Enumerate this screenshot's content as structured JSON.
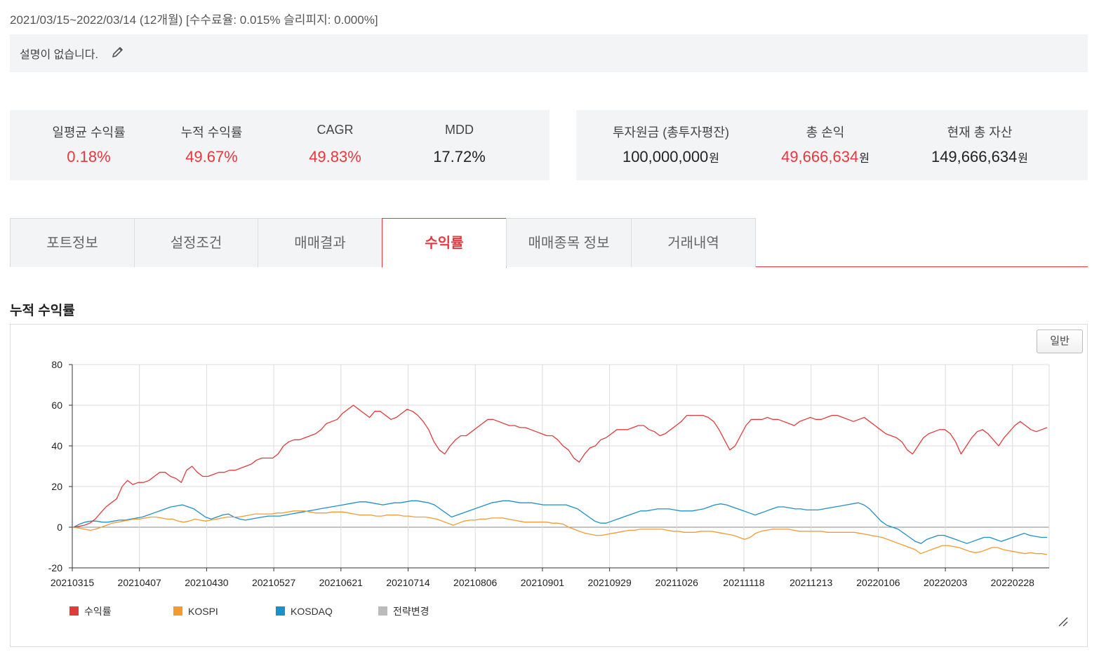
{
  "header": {
    "period": "2021/03/15~2022/03/14 (12개월) [수수료율: 0.015% 슬리피지: 0.000%]",
    "description": "설명이 없습니다."
  },
  "stats_left": [
    {
      "label": "일평균 수익률",
      "value": "0.18%",
      "color": "#e8383d"
    },
    {
      "label": "누적 수익률",
      "value": "49.67%",
      "color": "#e8383d"
    },
    {
      "label": "CAGR",
      "value": "49.83%",
      "color": "#e8383d"
    },
    {
      "label": "MDD",
      "value": "17.72%",
      "color": "#222222"
    }
  ],
  "stats_right": [
    {
      "label": "투자원금 (총투자평잔)",
      "value": "100,000,000",
      "unit": "원",
      "color": "#222222"
    },
    {
      "label": "총 손익",
      "value": "49,666,634",
      "unit": "원",
      "color": "#e8383d"
    },
    {
      "label": "현재 총 자산",
      "value": "149,666,634",
      "unit": "원",
      "color": "#222222"
    }
  ],
  "tabs": [
    {
      "label": "포트정보",
      "active": false
    },
    {
      "label": "설정조건",
      "active": false
    },
    {
      "label": "매매결과",
      "active": false
    },
    {
      "label": "수익률",
      "active": true
    },
    {
      "label": "매매종목 정보",
      "active": false
    },
    {
      "label": "거래내역",
      "active": false
    }
  ],
  "section_title": "누적 수익률",
  "chart_mode_button": "일반",
  "chart_data": {
    "type": "line",
    "title": "",
    "xlabel": "",
    "ylabel": "",
    "ylim": [
      -20,
      80
    ],
    "yticks": [
      "80",
      "60",
      "40",
      "20",
      "0",
      "-20"
    ],
    "xticks": [
      "20210315",
      "20210407",
      "20210430",
      "20210527",
      "20210621",
      "20210714",
      "20210806",
      "20210901",
      "20210929",
      "20211026",
      "20211118",
      "20211213",
      "20220106",
      "20220203",
      "20220228"
    ],
    "grid": true,
    "legend_position": "bottom-left",
    "series": [
      {
        "name": "수익률",
        "color": "#e03c3c",
        "values": [
          0,
          0.5,
          1,
          2,
          4,
          7,
          10,
          12,
          14,
          20,
          23,
          21,
          22,
          22,
          23,
          25,
          27,
          27,
          25,
          24,
          22,
          28,
          30,
          27,
          25,
          25,
          26,
          27,
          27,
          28,
          28,
          29,
          30,
          31,
          33,
          34,
          34,
          34,
          36,
          40,
          42,
          43,
          43,
          44,
          45,
          46,
          48,
          51,
          52,
          53,
          56,
          58,
          60,
          58,
          56,
          54,
          57,
          57,
          55,
          53,
          54,
          56,
          58,
          57,
          55,
          52,
          48,
          42,
          38,
          36,
          40,
          43,
          45,
          45,
          47,
          49,
          51,
          53,
          53,
          52,
          51,
          50,
          50,
          49,
          49,
          48,
          47,
          46,
          45,
          45,
          43,
          40,
          38,
          34,
          32,
          36,
          39,
          40,
          43,
          44,
          46,
          48,
          48,
          48,
          49,
          50,
          50,
          48,
          47,
          45,
          46,
          48,
          50,
          52,
          55,
          55,
          55,
          55,
          54,
          52,
          48,
          43,
          38,
          40,
          45,
          50,
          53,
          53,
          53,
          54,
          53,
          53,
          52,
          51,
          50,
          52,
          53,
          54,
          53,
          53,
          54,
          55,
          55,
          54,
          53,
          52,
          53,
          54,
          52,
          50,
          48,
          46,
          45,
          44,
          42,
          38,
          36,
          40,
          44,
          46,
          47,
          48,
          48,
          46,
          42,
          36,
          40,
          44,
          47,
          48,
          46,
          43,
          40,
          44,
          47,
          50,
          52,
          50,
          48,
          47,
          48,
          49
        ]
      },
      {
        "name": "KOSPI",
        "color": "#f29b30",
        "values": [
          0,
          -0.5,
          -1,
          -1.5,
          -1,
          0,
          1,
          2,
          2.5,
          3,
          3.5,
          4,
          4,
          4.5,
          5,
          5,
          4.5,
          4,
          4,
          3,
          2.5,
          3,
          4,
          3.5,
          3,
          3.5,
          4,
          4.5,
          5,
          5,
          5,
          5.5,
          6,
          6.5,
          6.5,
          6.5,
          6.5,
          7,
          7,
          7.5,
          8,
          8,
          8,
          7.5,
          7,
          7,
          7,
          7.5,
          7.5,
          7.5,
          7,
          6.5,
          6,
          6,
          6,
          5.5,
          5.5,
          6,
          6,
          6,
          5.5,
          5.5,
          5,
          5,
          5,
          4.5,
          4,
          3,
          2,
          1,
          2,
          3,
          3.5,
          3.5,
          4,
          4,
          4.5,
          4.5,
          4.5,
          4,
          3.5,
          3,
          2.5,
          2.5,
          2.5,
          2.5,
          2.5,
          2,
          2,
          1.5,
          0,
          -1,
          -2,
          -3,
          -3.5,
          -4,
          -4,
          -3.5,
          -3,
          -2.5,
          -2,
          -1.5,
          -1.5,
          -1,
          -1,
          -1,
          -1,
          -1,
          -1.5,
          -2,
          -2,
          -2.5,
          -2.5,
          -2.5,
          -2,
          -2,
          -2,
          -2.5,
          -3,
          -3.5,
          -4,
          -5,
          -6,
          -5,
          -3,
          -2,
          -1.5,
          -1,
          -1,
          -1,
          -1,
          -1.5,
          -2,
          -2,
          -2,
          -2,
          -2,
          -2.5,
          -2.5,
          -2.5,
          -2.5,
          -2.5,
          -2.5,
          -3,
          -3.5,
          -4,
          -4.5,
          -5,
          -6,
          -7,
          -8,
          -9,
          -10,
          -11,
          -13,
          -12,
          -11,
          -10,
          -9,
          -9,
          -9.5,
          -10,
          -11,
          -12,
          -12.5,
          -12,
          -11,
          -10,
          -10,
          -11,
          -11.5,
          -12,
          -12.5,
          -13,
          -12.5,
          -13,
          -13,
          -13.5
        ]
      },
      {
        "name": "KOSDAQ",
        "color": "#1e90c8",
        "values": [
          0,
          1.5,
          2.5,
          3,
          3,
          2.5,
          2.5,
          3,
          3.5,
          3.5,
          4,
          4.5,
          5,
          6,
          7,
          8,
          9,
          10,
          10.5,
          11,
          10,
          9,
          7,
          5,
          4,
          5,
          6,
          6.5,
          5,
          4,
          3.5,
          4,
          4.5,
          5,
          5.5,
          5.5,
          5.5,
          6,
          6.5,
          7,
          7.5,
          8,
          8.5,
          9,
          9.5,
          10,
          10.5,
          11,
          11.5,
          12,
          12.5,
          12.5,
          12,
          11.5,
          11,
          11.5,
          12,
          12,
          12.5,
          13,
          13,
          12.5,
          12,
          11,
          9,
          7,
          5,
          6,
          7,
          8,
          9,
          10,
          11,
          12,
          12.5,
          13,
          13,
          12.5,
          12,
          12,
          12,
          11.5,
          11,
          11,
          11,
          11,
          11,
          10,
          9,
          7,
          5,
          3,
          2,
          2,
          3,
          4,
          5,
          6,
          7,
          8,
          8,
          8.5,
          9,
          9,
          9,
          8.5,
          8,
          8,
          8,
          8.5,
          9,
          10,
          11,
          11.5,
          11,
          10,
          9,
          8,
          7,
          6,
          7,
          8,
          9,
          10,
          10,
          9.5,
          9,
          9,
          8.5,
          8.5,
          8.5,
          9,
          9.5,
          10,
          10.5,
          11,
          11.5,
          12,
          11,
          9,
          6,
          3,
          1,
          0,
          -1,
          -3,
          -5,
          -7,
          -8,
          -6,
          -5,
          -4,
          -4,
          -5,
          -6,
          -7,
          -8,
          -7,
          -6,
          -5,
          -5,
          -6,
          -7,
          -6,
          -5,
          -4,
          -3,
          -4,
          -4.5,
          -5,
          -5
        ]
      },
      {
        "name": "전략변경",
        "color": "#bbbbbb",
        "values": []
      }
    ]
  }
}
